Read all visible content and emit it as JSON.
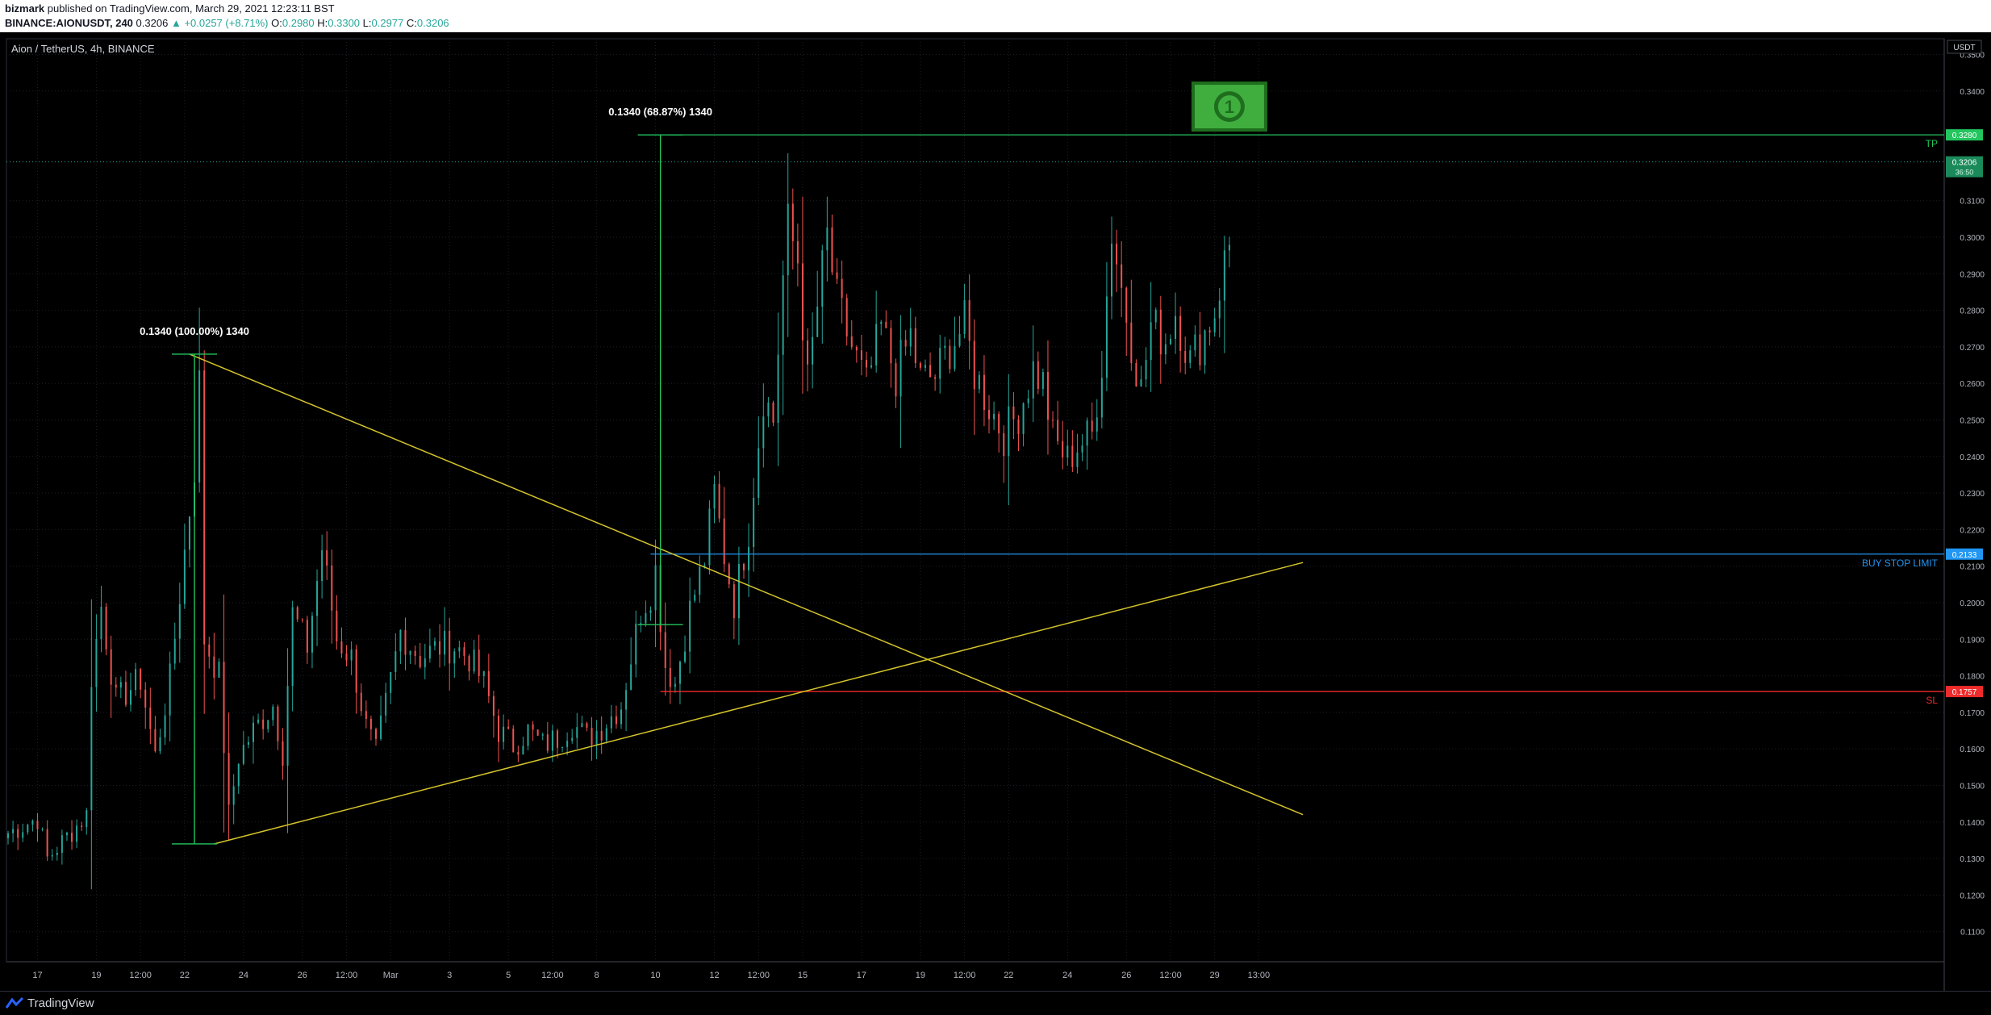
{
  "header": {
    "author": "bizmark",
    "published_text": "published on TradingView.com, March 29, 2021 12:23:11 BST",
    "symbol": "BINANCE:AIONUSDT, 240",
    "last": "0.3206",
    "change_arrow": "▲",
    "change": "+0.0257 (+8.71%)",
    "o_label": "O:",
    "o": "0.2980",
    "h_label": "H:",
    "h": "0.3300",
    "l_label": "L:",
    "l": "0.2977",
    "c_label": "C:",
    "c": "0.3206"
  },
  "chart_title": "Aion / TetherUS, 4h, BINANCE",
  "footer": {
    "brand": "TradingView"
  },
  "colors": {
    "up": "#26a69a",
    "down": "#ef5350",
    "yellow": "#d4c42a",
    "green": "#22c55e",
    "blue": "#2196f3",
    "red": "#ef2b2b"
  },
  "chart_data": {
    "type": "candlestick",
    "y_axis": {
      "unit": "USDT",
      "min": 0.1,
      "max": 0.35,
      "ticks": [
        "0.1100",
        "0.1200",
        "0.1300",
        "0.1400",
        "0.1500",
        "0.1600",
        "0.1700",
        "0.1800",
        "0.1900",
        "0.2000",
        "0.2100",
        "0.2200",
        "0.2300",
        "0.2400",
        "0.2500",
        "0.2600",
        "0.2700",
        "0.2800",
        "0.2900",
        "0.3000",
        "0.3100",
        "0.3400",
        "0.3500"
      ]
    },
    "x_axis": {
      "ticks": [
        {
          "label": "17",
          "i": 6
        },
        {
          "label": "19",
          "i": 18
        },
        {
          "label": "12:00",
          "i": 27
        },
        {
          "label": "22",
          "i": 36
        },
        {
          "label": "24",
          "i": 48
        },
        {
          "label": "26",
          "i": 60
        },
        {
          "label": "12:00",
          "i": 69
        },
        {
          "label": "Mar",
          "i": 78
        },
        {
          "label": "3",
          "i": 90
        },
        {
          "label": "5",
          "i": 102
        },
        {
          "label": "12:00",
          "i": 111
        },
        {
          "label": "8",
          "i": 120
        },
        {
          "label": "10",
          "i": 132
        },
        {
          "label": "12",
          "i": 144
        },
        {
          "label": "12:00",
          "i": 153
        },
        {
          "label": "15",
          "i": 162
        },
        {
          "label": "17",
          "i": 174
        },
        {
          "label": "19",
          "i": 186
        },
        {
          "label": "12:00",
          "i": 195
        },
        {
          "label": "22",
          "i": 204
        },
        {
          "label": "24",
          "i": 216
        },
        {
          "label": "26",
          "i": 228
        },
        {
          "label": "12:00",
          "i": 237
        },
        {
          "label": "29",
          "i": 246
        },
        {
          "label": "13:00",
          "i": 255
        }
      ]
    },
    "candles_count": 250,
    "anchors": [
      [
        0,
        0.137
      ],
      [
        6,
        0.141
      ],
      [
        8,
        0.13
      ],
      [
        14,
        0.139
      ],
      [
        16,
        0.142
      ],
      [
        17,
        0.18
      ],
      [
        19,
        0.199
      ],
      [
        22,
        0.173
      ],
      [
        27,
        0.179
      ],
      [
        30,
        0.158
      ],
      [
        33,
        0.179
      ],
      [
        36,
        0.214
      ],
      [
        38,
        0.237
      ],
      [
        39,
        0.26
      ],
      [
        40,
        0.19
      ],
      [
        43,
        0.18
      ],
      [
        45,
        0.142
      ],
      [
        47,
        0.158
      ],
      [
        50,
        0.165
      ],
      [
        54,
        0.172
      ],
      [
        56,
        0.159
      ],
      [
        58,
        0.197
      ],
      [
        61,
        0.188
      ],
      [
        64,
        0.215
      ],
      [
        67,
        0.19
      ],
      [
        70,
        0.185
      ],
      [
        73,
        0.166
      ],
      [
        75,
        0.159
      ],
      [
        80,
        0.192
      ],
      [
        84,
        0.185
      ],
      [
        88,
        0.188
      ],
      [
        91,
        0.188
      ],
      [
        94,
        0.185
      ],
      [
        97,
        0.178
      ],
      [
        100,
        0.165
      ],
      [
        103,
        0.161
      ],
      [
        106,
        0.165
      ],
      [
        109,
        0.161
      ],
      [
        112,
        0.163
      ],
      [
        115,
        0.167
      ],
      [
        118,
        0.163
      ],
      [
        121,
        0.166
      ],
      [
        125,
        0.172
      ],
      [
        127,
        0.185
      ],
      [
        129,
        0.198
      ],
      [
        131,
        0.203
      ],
      [
        132,
        0.209
      ],
      [
        134,
        0.183
      ],
      [
        136,
        0.178
      ],
      [
        139,
        0.198
      ],
      [
        142,
        0.212
      ],
      [
        144,
        0.23
      ],
      [
        146,
        0.213
      ],
      [
        148,
        0.2
      ],
      [
        151,
        0.22
      ],
      [
        154,
        0.257
      ],
      [
        156,
        0.25
      ],
      [
        158,
        0.289
      ],
      [
        159,
        0.303
      ],
      [
        161,
        0.294
      ],
      [
        163,
        0.26
      ],
      [
        165,
        0.281
      ],
      [
        167,
        0.3
      ],
      [
        169,
        0.282
      ],
      [
        172,
        0.27
      ],
      [
        175,
        0.259
      ],
      [
        178,
        0.275
      ],
      [
        181,
        0.262
      ],
      [
        184,
        0.273
      ],
      [
        186,
        0.261
      ],
      [
        189,
        0.262
      ],
      [
        192,
        0.27
      ],
      [
        195,
        0.276
      ],
      [
        197,
        0.263
      ],
      [
        200,
        0.254
      ],
      [
        203,
        0.246
      ],
      [
        206,
        0.252
      ],
      [
        209,
        0.264
      ],
      [
        211,
        0.26
      ],
      [
        213,
        0.245
      ],
      [
        216,
        0.239
      ],
      [
        218,
        0.243
      ],
      [
        221,
        0.246
      ],
      [
        223,
        0.266
      ],
      [
        225,
        0.302
      ],
      [
        227,
        0.286
      ],
      [
        229,
        0.272
      ],
      [
        231,
        0.258
      ],
      [
        233,
        0.276
      ],
      [
        236,
        0.272
      ],
      [
        238,
        0.28
      ],
      [
        241,
        0.266
      ],
      [
        244,
        0.274
      ],
      [
        246,
        0.28
      ],
      [
        248,
        0.293
      ],
      [
        249,
        0.298
      ],
      [
        250,
        0.3206
      ]
    ],
    "patterns": [
      {
        "type": "triangle_upper_trendline",
        "from": {
          "i": 37,
          "price": 0.268
        },
        "to": {
          "i": 264,
          "price": 0.142
        }
      },
      {
        "type": "triangle_lower_trendline",
        "from": {
          "i": 42,
          "price": 0.134
        },
        "to": {
          "i": 264,
          "price": 0.211
        }
      }
    ],
    "measures": [
      {
        "label": "0.1340 (100.00%) 1340",
        "i": 38,
        "from": 0.134,
        "to": 0.268
      },
      {
        "label": "0.1340 (68.87%) 1340",
        "i": 133,
        "from": 0.194,
        "to": 0.328
      }
    ],
    "levels": [
      {
        "name": "TP",
        "value": 0.328,
        "label": "0.3280"
      },
      {
        "name": "BUY STOP LIMIT",
        "value": 0.2133,
        "label": "0.2133"
      },
      {
        "name": "SL",
        "value": 0.1757,
        "label": "0.1757"
      }
    ],
    "last_price": {
      "value": 0.3206,
      "label": "0.3206",
      "countdown": "36:50"
    }
  }
}
